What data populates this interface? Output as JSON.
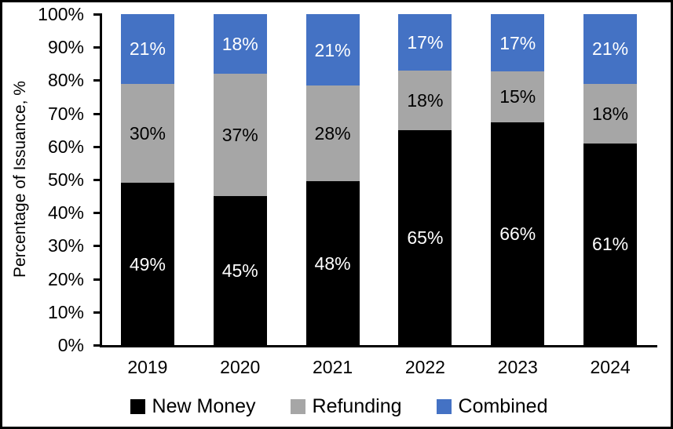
{
  "chart_data": {
    "type": "bar",
    "stacked": true,
    "percent_stacked": true,
    "title": "",
    "xlabel": "",
    "ylabel": "Percentage of Issuance, %",
    "categories": [
      "2019",
      "2020",
      "2021",
      "2022",
      "2023",
      "2024"
    ],
    "series": [
      {
        "name": "New Money",
        "color": "#000000",
        "label_color": "#ffffff",
        "values": [
          49,
          45,
          48,
          65,
          66,
          61
        ]
      },
      {
        "name": "Refunding",
        "color": "#A6A6A6",
        "label_color": "#000000",
        "values": [
          30,
          37,
          28,
          18,
          15,
          18
        ]
      },
      {
        "name": "Combined",
        "color": "#4472C4",
        "label_color": "#ffffff",
        "values": [
          21,
          18,
          21,
          17,
          17,
          21
        ]
      }
    ],
    "data_label_suffix": "%",
    "ylim": [
      0,
      100
    ],
    "ytick_labels": [
      "0%",
      "10%",
      "20%",
      "30%",
      "40%",
      "50%",
      "60%",
      "70%",
      "80%",
      "90%",
      "100%"
    ],
    "grid": false,
    "legend_position": "bottom",
    "axis_color": "#000000",
    "background_color": "#ffffff"
  }
}
